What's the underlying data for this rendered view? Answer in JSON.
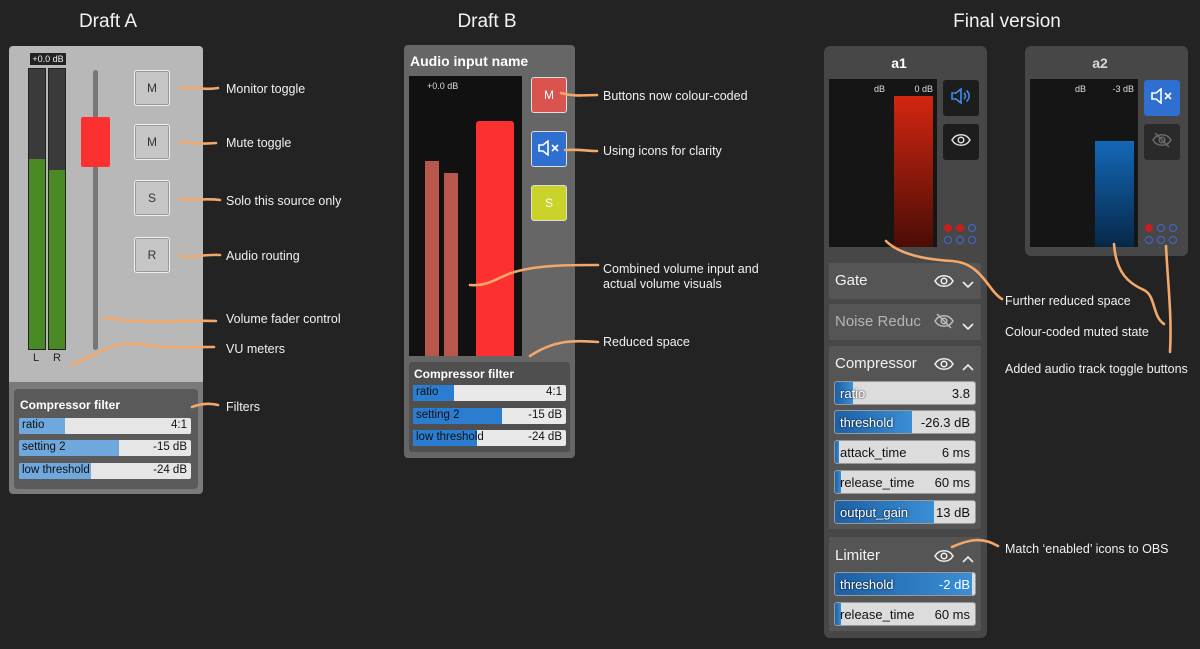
{
  "headings": {
    "draft_a": "Draft A",
    "draft_b": "Draft B",
    "final": "Final version"
  },
  "draft_a": {
    "db_label": "+0.0 dB",
    "meter_left_label": "L",
    "meter_right_label": "R",
    "meter_left_level": 0.68,
    "meter_right_level": 0.64,
    "buttons": [
      "M",
      "M",
      "S",
      "R"
    ],
    "filter": {
      "title": "Compressor filter",
      "rows": [
        {
          "label": "ratio",
          "value": "4:1",
          "fill": 0.27
        },
        {
          "label": "setting 2",
          "value": "-15 dB",
          "fill": 0.58
        },
        {
          "label": "low threshold",
          "value": "-24 dB",
          "fill": 0.42
        }
      ]
    },
    "annotations": [
      "Monitor toggle",
      "Mute toggle",
      "Solo this source only",
      "Audio routing",
      "Volume fader control",
      "VU meters",
      "Filters"
    ]
  },
  "draft_b": {
    "title": "Audio input name",
    "db_label": "+0.0 dB",
    "buttons": {
      "m": "M",
      "s": "S"
    },
    "colors": {
      "m": "#d9534f",
      "mute": "#2f6fd0",
      "s": "#c9d32a"
    },
    "filter": {
      "title": "Compressor filter",
      "rows": [
        {
          "label": "ratio",
          "value": "4:1",
          "fill": 0.27
        },
        {
          "label": "setting 2",
          "value": "-15 dB",
          "fill": 0.58
        },
        {
          "label": "low threshold",
          "value": "-24 dB",
          "fill": 0.42
        }
      ]
    },
    "annotations": [
      "Buttons now colour-coded",
      "Using icons for clarity",
      "Combined volume input and actual volume visuals",
      "Reduced space"
    ]
  },
  "final": {
    "a1": {
      "title": "a1",
      "db_unit": "dB",
      "db_value": "0 dB"
    },
    "a2": {
      "title": "a2",
      "db_unit": "dB",
      "db_value": "-3 dB"
    },
    "sections": {
      "gate": "Gate",
      "noise": "Noise Reduc",
      "compressor": "Compressor",
      "limiter": "Limiter"
    },
    "compressor_rows": [
      {
        "label": "ratio",
        "value": "3.8",
        "fill": 0.13
      },
      {
        "label": "threshold",
        "value": "-26.3 dB",
        "fill": 0.55
      },
      {
        "label": "attack_time",
        "value": "6 ms",
        "fill": 0.03
      },
      {
        "label": "release_time",
        "value": "60 ms",
        "fill": 0.04
      },
      {
        "label": "output_gain",
        "value": "13 dB",
        "fill": 0.71
      }
    ],
    "limiter_rows": [
      {
        "label": "threshold",
        "value": "-2 dB",
        "fill": 0.98
      },
      {
        "label": "release_time",
        "value": "60 ms",
        "fill": 0.04
      }
    ],
    "annotations": [
      "Further reduced space",
      "Colour-coded muted state",
      "Added audio track toggle buttons",
      "Match ‘enabled’ icons to OBS"
    ]
  }
}
